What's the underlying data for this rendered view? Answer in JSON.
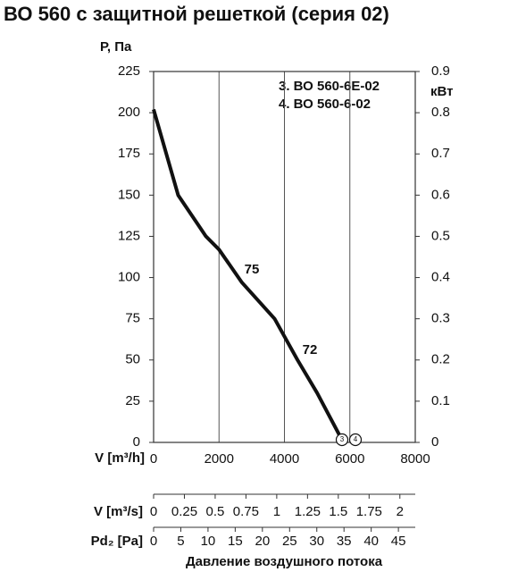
{
  "chart_data": {
    "type": "line",
    "title": "ВО 560 с защитной решеткой (серия 02)",
    "ylabel": "Р, Па",
    "y2label": "кВт",
    "xlabel": "V [m³/h]",
    "x": [
      0,
      750,
      1600,
      2000,
      2700,
      3700,
      4400,
      5000,
      5800
    ],
    "series": [
      {
        "color": "#111111",
        "values": [
          202,
          150,
          125,
          117,
          97,
          75,
          50,
          30,
          0
        ]
      }
    ],
    "xlim": [
      0,
      8000
    ],
    "xticks": [
      0,
      2000,
      4000,
      6000,
      8000
    ],
    "ylim": [
      0,
      225
    ],
    "yticks": [
      0,
      25,
      50,
      75,
      100,
      125,
      150,
      175,
      200,
      225
    ],
    "y2lim": [
      0,
      0.9
    ],
    "y2ticks": [
      0,
      0.1,
      0.2,
      0.3,
      0.4,
      0.5,
      0.6,
      0.7,
      0.8,
      0.9
    ],
    "grid": true,
    "legend": [
      "3. ВО 560-6Е-02",
      "4. ВО 560-6-02"
    ],
    "annotations": [
      "75",
      "72"
    ],
    "point_labels": [
      "3",
      "4"
    ],
    "extra_axes": [
      {
        "label": "V [m³/s]",
        "lim": [
          0,
          2.125
        ],
        "ticks": [
          0,
          0.25,
          0.5,
          0.75,
          1,
          1.25,
          1.5,
          1.75,
          2
        ]
      },
      {
        "label": "Pd₂ [Pa]",
        "lim": [
          0,
          48.1
        ],
        "ticks": [
          0,
          5,
          10,
          15,
          20,
          25,
          30,
          35,
          40,
          45
        ]
      }
    ],
    "footer": "Давление воздушного потока"
  }
}
